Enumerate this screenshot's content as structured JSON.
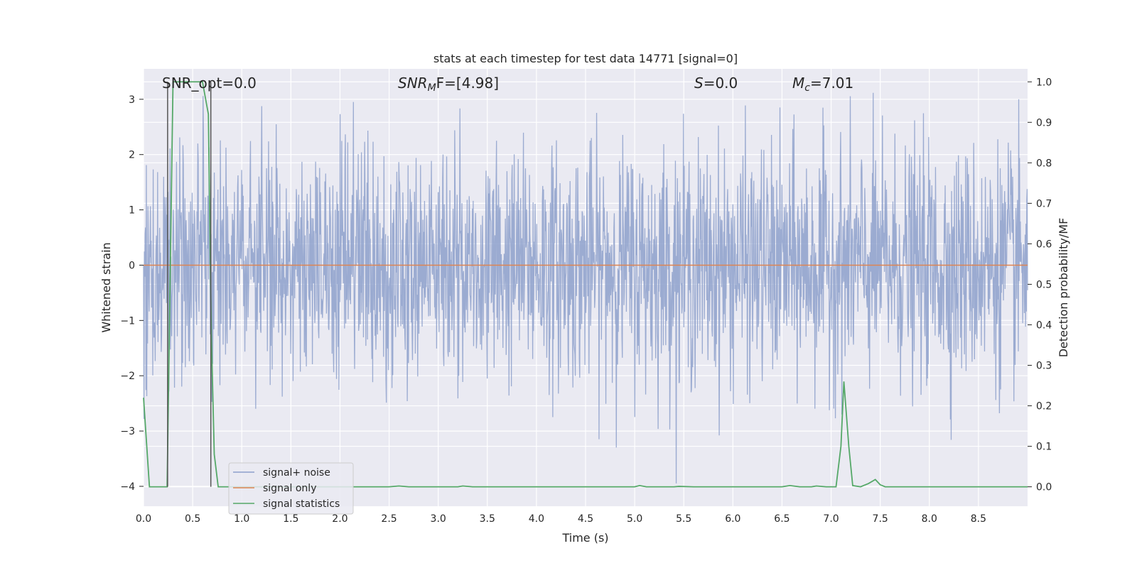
{
  "chart_data": {
    "type": "line",
    "title": "stats at each timestep for test data 14771 [signal=0]",
    "xlabel": "Time (s)",
    "ylabel_left": "Whitened strain",
    "ylabel_right": "Detection probability/MF",
    "xlim": [
      0.0,
      9.0
    ],
    "ylim_left": [
      -4.36,
      3.55
    ],
    "ylim_right": [
      -0.048,
      1.032
    ],
    "x_ticks": [
      "0.0",
      "0.5",
      "1.0",
      "1.5",
      "2.0",
      "2.5",
      "3.0",
      "3.5",
      "4.0",
      "4.5",
      "5.0",
      "5.5",
      "6.0",
      "6.5",
      "7.0",
      "7.5",
      "8.0",
      "8.5"
    ],
    "y_ticks_left": [
      "3",
      "2",
      "1",
      "0",
      "−1",
      "−2",
      "−3",
      "−4"
    ],
    "y_ticks_right": [
      "1.0",
      "0.9",
      "0.8",
      "0.7",
      "0.6",
      "0.5",
      "0.4",
      "0.3",
      "0.2",
      "0.1",
      "0.0"
    ],
    "grid": true,
    "legend_position": "lower-left",
    "annotations": {
      "snr_opt": "SNR_opt=0.0",
      "snr_mf_main": "SNR",
      "snr_mf_sub": "M",
      "snr_mf_tail": "F=[4.98]",
      "s_main": "S",
      "s_tail": "=0.0",
      "mc_main": "M",
      "mc_sub": "c",
      "mc_tail": "=7.01"
    },
    "series": [
      {
        "name": "signal+ noise",
        "color": "#8da0cb",
        "axis": "left",
        "description_values": "whitened noise samples, approx. within [-4, 3.4]"
      },
      {
        "name": "signal only",
        "color": "#dd8452",
        "axis": "left",
        "x": [
          0.0,
          9.0
        ],
        "y": [
          0.0,
          0.0
        ]
      },
      {
        "name": "signal statistics",
        "color": "#55a868",
        "axis": "right",
        "x": [
          0.0,
          0.06,
          0.12,
          0.18,
          0.24,
          0.3,
          0.36,
          0.42,
          0.48,
          0.54,
          0.6,
          0.66,
          0.69,
          0.72,
          0.76,
          0.82,
          0.9,
          1.0,
          1.2,
          1.5,
          2.0,
          2.5,
          2.6,
          2.7,
          3.0,
          3.2,
          3.25,
          3.35,
          3.5,
          4.0,
          4.5,
          5.0,
          5.05,
          5.12,
          5.4,
          5.45,
          5.6,
          6.0,
          6.5,
          6.58,
          6.68,
          6.8,
          6.85,
          6.95,
          7.05,
          7.1,
          7.13,
          7.18,
          7.22,
          7.3,
          7.38,
          7.45,
          7.5,
          7.55,
          7.65,
          8.0,
          8.5,
          9.0
        ],
        "y": [
          0.22,
          0.0,
          0.0,
          0.0,
          0.0,
          1.0,
          1.0,
          1.0,
          1.0,
          1.0,
          1.0,
          0.92,
          0.38,
          0.08,
          0.0,
          0.0,
          0.0,
          0.0,
          0.0,
          0.0,
          0.0,
          0.0,
          0.002,
          0.0,
          0.0,
          0.0,
          0.002,
          0.0,
          0.0,
          0.0,
          0.0,
          0.0,
          0.003,
          0.0,
          0.0,
          0.001,
          0.0,
          0.0,
          0.0,
          0.003,
          0.0,
          0.0,
          0.002,
          0.0,
          0.0,
          0.1,
          0.26,
          0.1,
          0.003,
          0.0,
          0.008,
          0.018,
          0.005,
          0.0,
          0.0,
          0.0,
          0.0,
          0.0
        ]
      }
    ],
    "vertical_markers": {
      "color": "#555555",
      "x": [
        0.245,
        0.685
      ]
    }
  }
}
